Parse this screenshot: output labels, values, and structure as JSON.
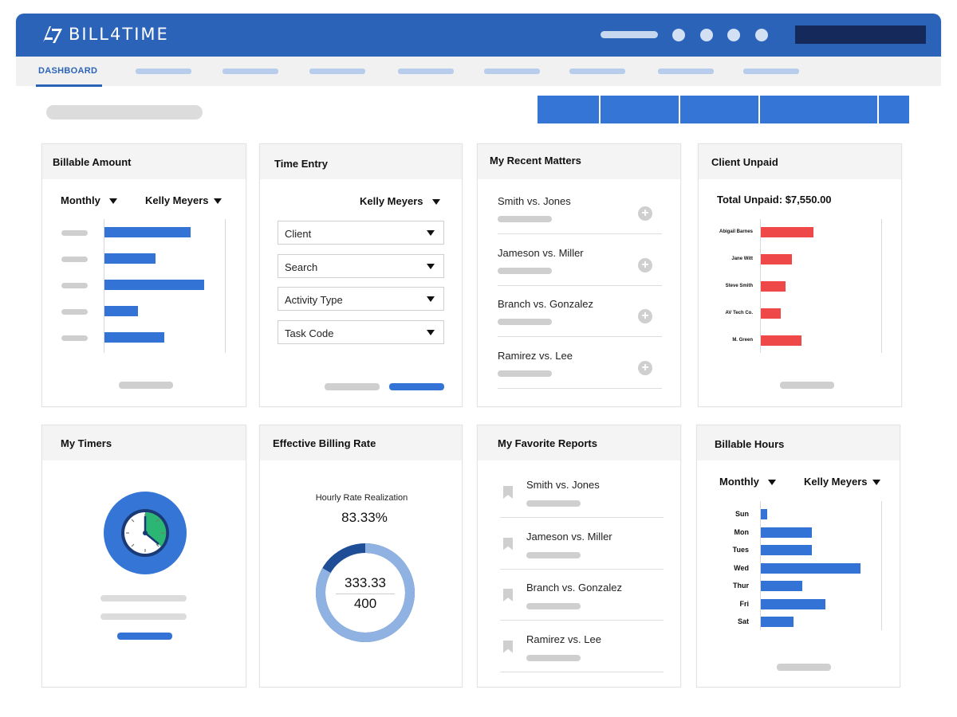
{
  "app": {
    "logo_text": "BILL4TIME"
  },
  "nav": {
    "active_tab": "DASHBOARD"
  },
  "colors": {
    "brand_blue": "#2b63b9",
    "bar_blue": "#3473d6",
    "unpaid_red": "#ee4848",
    "timer_green": "#2bb673"
  },
  "billable_amount": {
    "title": "Billable Amount",
    "period": "Monthly",
    "user": "Kelly Meyers",
    "bar_fractions": [
      0.69,
      0.41,
      0.8,
      0.27,
      0.48
    ]
  },
  "time_entry": {
    "title": "Time Entry",
    "user": "Kelly Meyers",
    "fields": [
      "Client",
      "Search",
      "Activity Type",
      "Task Code"
    ]
  },
  "recent_matters": {
    "title": "My Recent Matters",
    "items": [
      "Smith vs. Jones",
      "Jameson vs. Miller",
      "Branch vs. Gonzalez",
      "Ramirez vs. Lee"
    ]
  },
  "client_unpaid": {
    "title": "Client Unpaid",
    "total": "Total Unpaid: $7,550.00",
    "clients": [
      "Abigail Barnes",
      "Jane Witt",
      "Steve Smith",
      "AV Tech Co.",
      "M. Green"
    ],
    "bar_fractions": [
      0.42,
      0.25,
      0.2,
      0.16,
      0.33
    ]
  },
  "timers": {
    "title": "My Timers"
  },
  "billing_rate": {
    "title": "Effective Billing Rate",
    "subtitle": "Hourly Rate Realization",
    "percent": "83.33%",
    "numerator": "333.33",
    "denominator": "400",
    "realization_fraction": 0.8333
  },
  "favorite_reports": {
    "title": "My Favorite Reports",
    "items": [
      "Smith vs. Jones",
      "Jameson vs. Miller",
      "Branch vs. Gonzalez",
      "Ramirez vs. Lee"
    ]
  },
  "billable_hours": {
    "title": "Billable Hours",
    "period": "Monthly",
    "user": "Kelly Meyers",
    "days": [
      "Sun",
      "Mon",
      "Tues",
      "Wed",
      "Thur",
      "Fri",
      "Sat"
    ],
    "bar_fractions": [
      0.05,
      0.42,
      0.42,
      0.82,
      0.34,
      0.53,
      0.27
    ]
  }
}
